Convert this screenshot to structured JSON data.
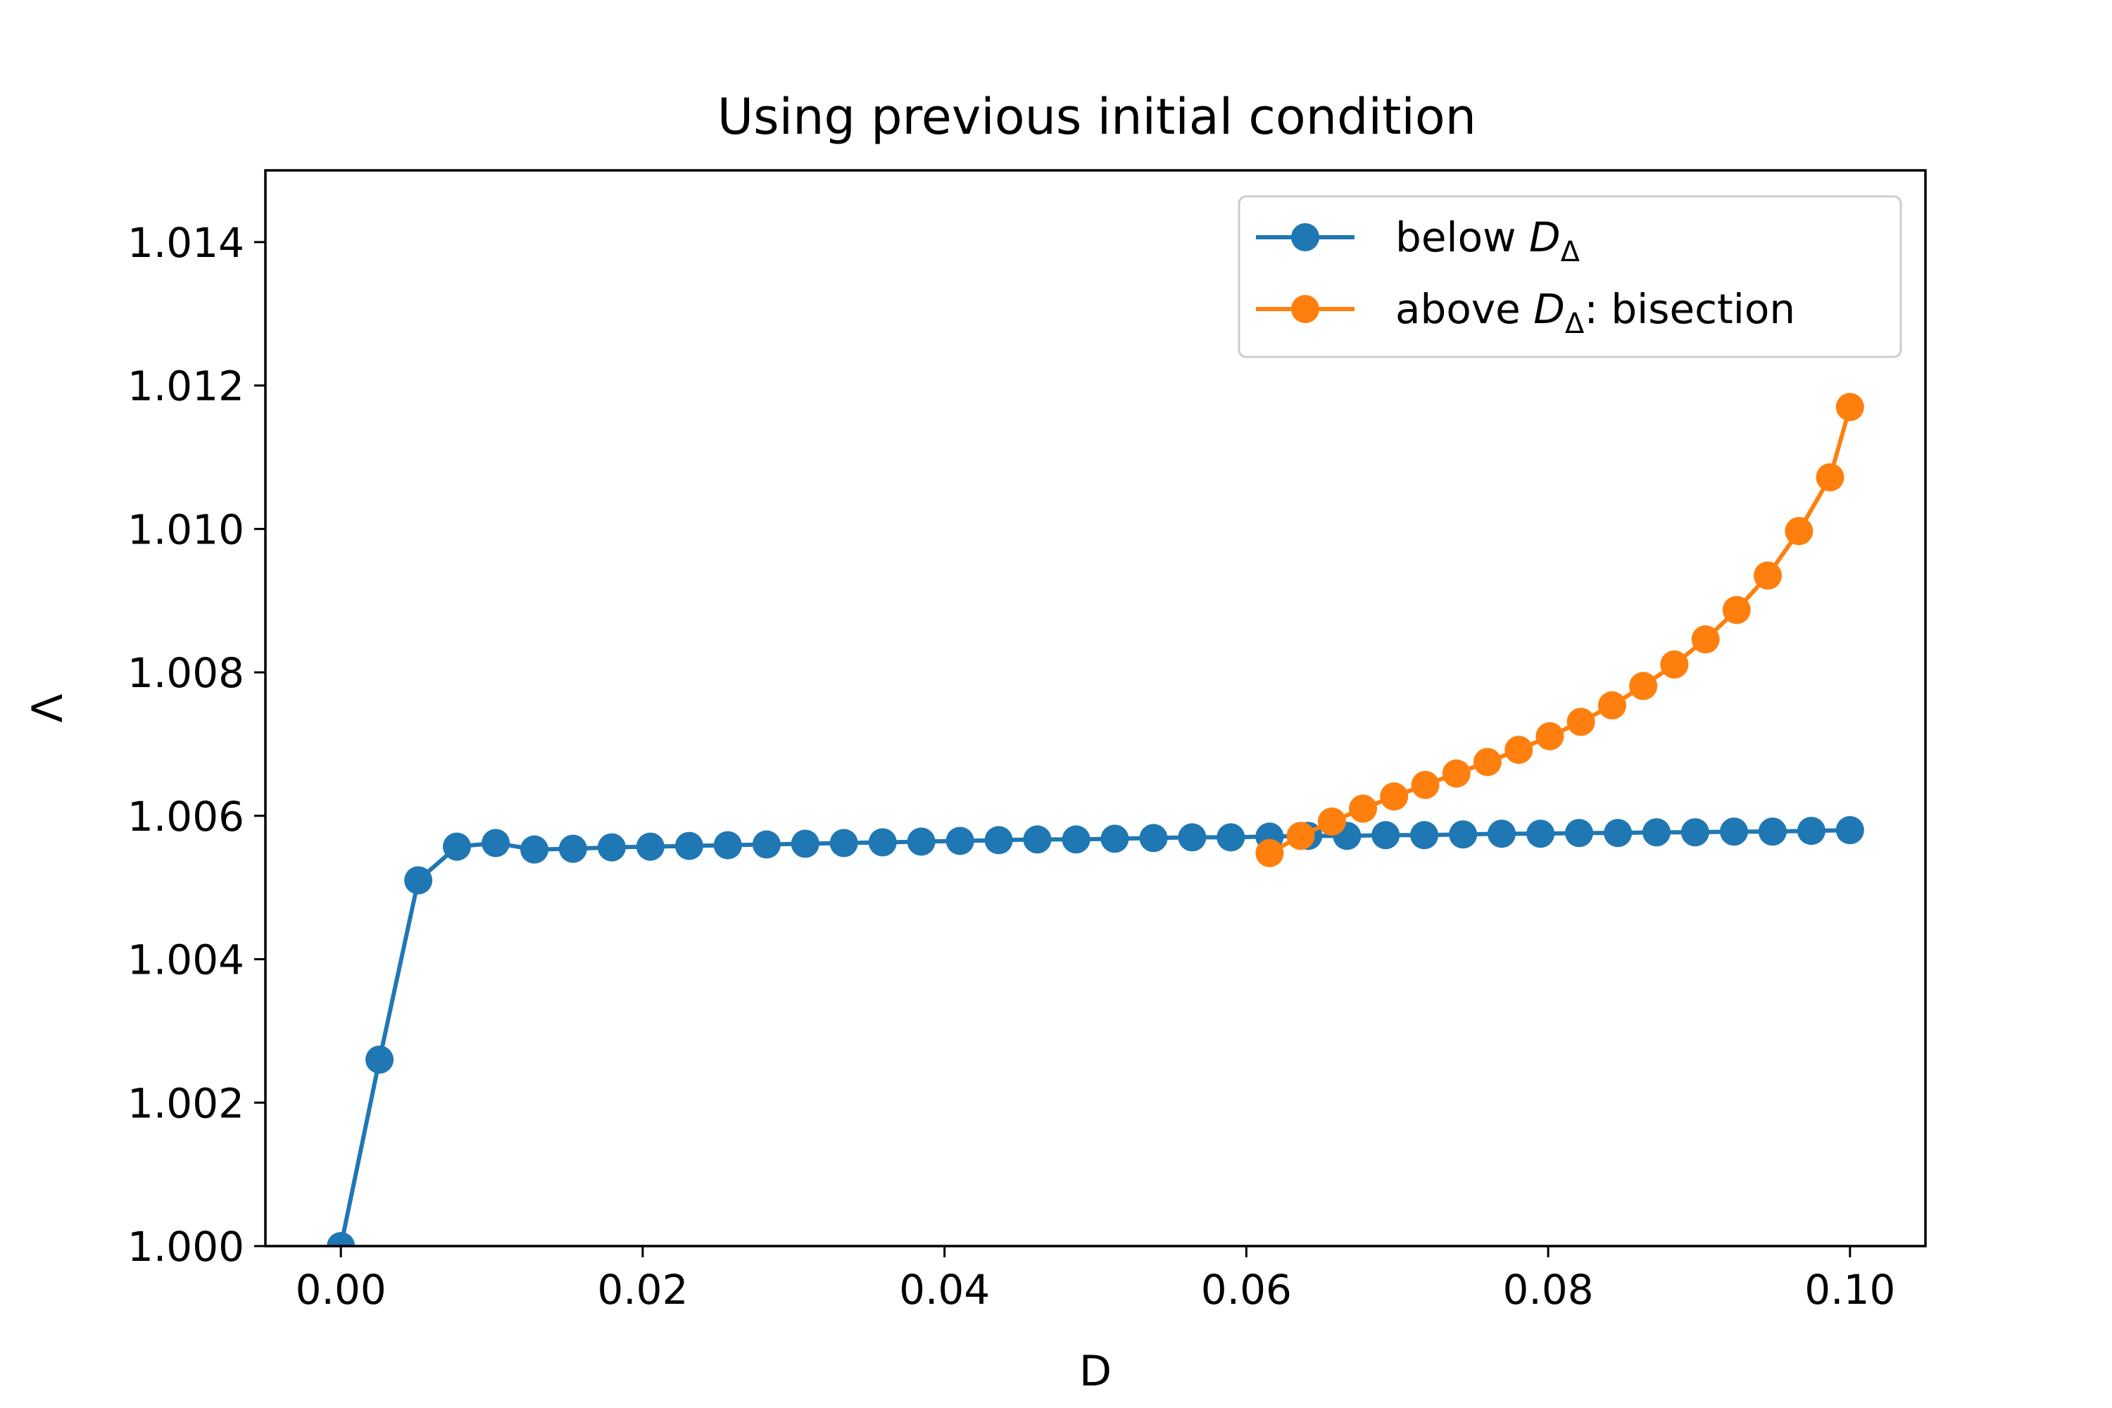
{
  "chart_data": {
    "type": "line",
    "title": "Using previous initial condition",
    "xlabel": "D",
    "ylabel": "Λ",
    "xlim": [
      -0.005,
      0.105
    ],
    "ylim": [
      1.0,
      1.015
    ],
    "x_ticks": [
      0.0,
      0.02,
      0.04,
      0.06,
      0.08,
      0.1
    ],
    "x_tick_labels": [
      "0.00",
      "0.02",
      "0.04",
      "0.06",
      "0.08",
      "0.10"
    ],
    "y_ticks": [
      1.0,
      1.002,
      1.004,
      1.006,
      1.008,
      1.01,
      1.012,
      1.014
    ],
    "y_tick_labels": [
      "1.000",
      "1.002",
      "1.004",
      "1.006",
      "1.008",
      "1.010",
      "1.012",
      "1.014"
    ],
    "grid": false,
    "legend_position": "top-right",
    "series": [
      {
        "name_parts": [
          "below ",
          "D",
          "Δ",
          ""
        ],
        "color": "#1f77b4",
        "x": [
          0.0,
          0.00256,
          0.00513,
          0.00769,
          0.01026,
          0.01282,
          0.01538,
          0.01795,
          0.02051,
          0.02308,
          0.02564,
          0.02821,
          0.03077,
          0.03333,
          0.0359,
          0.03846,
          0.04103,
          0.04359,
          0.04615,
          0.04872,
          0.05128,
          0.05385,
          0.05641,
          0.05897,
          0.06154,
          0.0641,
          0.06667,
          0.06923,
          0.07179,
          0.07436,
          0.07692,
          0.07949,
          0.08205,
          0.08462,
          0.08718,
          0.08974,
          0.09231,
          0.09487,
          0.09744,
          0.1
        ],
        "y": [
          1.0,
          1.0026,
          1.0051,
          1.00557,
          1.00562,
          1.00553,
          1.00554,
          1.00556,
          1.00557,
          1.00558,
          1.00559,
          1.0056,
          1.00561,
          1.00562,
          1.00563,
          1.00564,
          1.00565,
          1.00566,
          1.00567,
          1.00567,
          1.00568,
          1.00569,
          1.0057,
          1.0057,
          1.00571,
          1.00572,
          1.00572,
          1.00573,
          1.00573,
          1.00574,
          1.00575,
          1.00575,
          1.00576,
          1.00576,
          1.00577,
          1.00577,
          1.00578,
          1.00578,
          1.00579,
          1.0058
        ]
      },
      {
        "name_parts": [
          "above ",
          "D",
          "Δ",
          ": bisection"
        ],
        "color": "#ff7f0e",
        "x": [
          0.06154,
          0.0636,
          0.06567,
          0.06773,
          0.06979,
          0.07186,
          0.07392,
          0.07598,
          0.07805,
          0.08011,
          0.08217,
          0.08424,
          0.0863,
          0.08836,
          0.09043,
          0.09249,
          0.09455,
          0.09662,
          0.09868,
          0.1
        ],
        "y": [
          1.00548,
          1.00572,
          1.00592,
          1.0061,
          1.00627,
          1.00643,
          1.00659,
          1.00675,
          1.00692,
          1.00711,
          1.00731,
          1.00754,
          1.00781,
          1.00811,
          1.00846,
          1.00887,
          1.00935,
          1.00997,
          1.01072,
          1.0117
        ]
      }
    ]
  }
}
